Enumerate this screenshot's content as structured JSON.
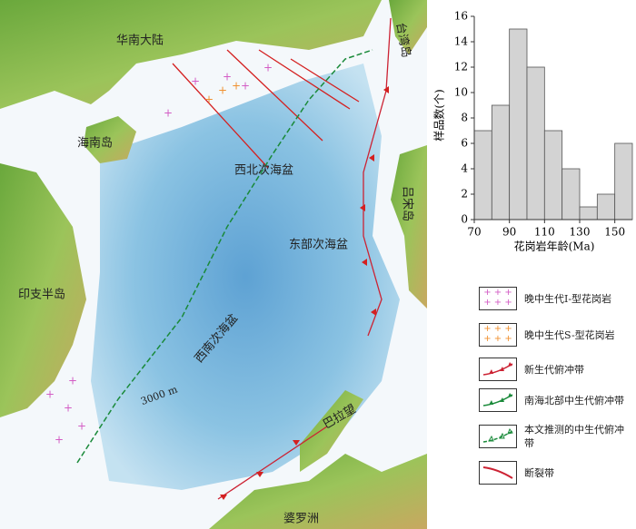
{
  "chart_data": {
    "type": "histogram",
    "xlabel": "花岗岩年龄(Ma)",
    "ylabel": "样品数(个)",
    "bins": [
      70,
      80,
      90,
      100,
      110,
      120,
      130,
      140,
      150,
      160
    ],
    "values": [
      7,
      9,
      15,
      12,
      7,
      4,
      1,
      2,
      6
    ],
    "color": "#d3d3d3",
    "xlim": [
      70,
      160
    ],
    "xticks": [
      70,
      90,
      110,
      130,
      150
    ],
    "ylim": [
      0,
      16
    ],
    "yticks": [
      0,
      2,
      4,
      6,
      8,
      10,
      12,
      14,
      16
    ]
  },
  "map": {
    "labels": [
      "华南大陆",
      "台湾岛",
      "海南岛",
      "西北次海盆",
      "东部次海盆",
      "吕宋岛",
      "印支半岛",
      "西南次海盆",
      "3000 m",
      "巴拉望",
      "婆罗洲"
    ]
  },
  "legend": [
    "晚中生代I-型花岗岩",
    "晚中生代S-型花岗岩",
    "新生代俯冲带",
    "南海北部中生代俯冲带",
    "本文推测的中生代俯冲带",
    "断裂带"
  ]
}
